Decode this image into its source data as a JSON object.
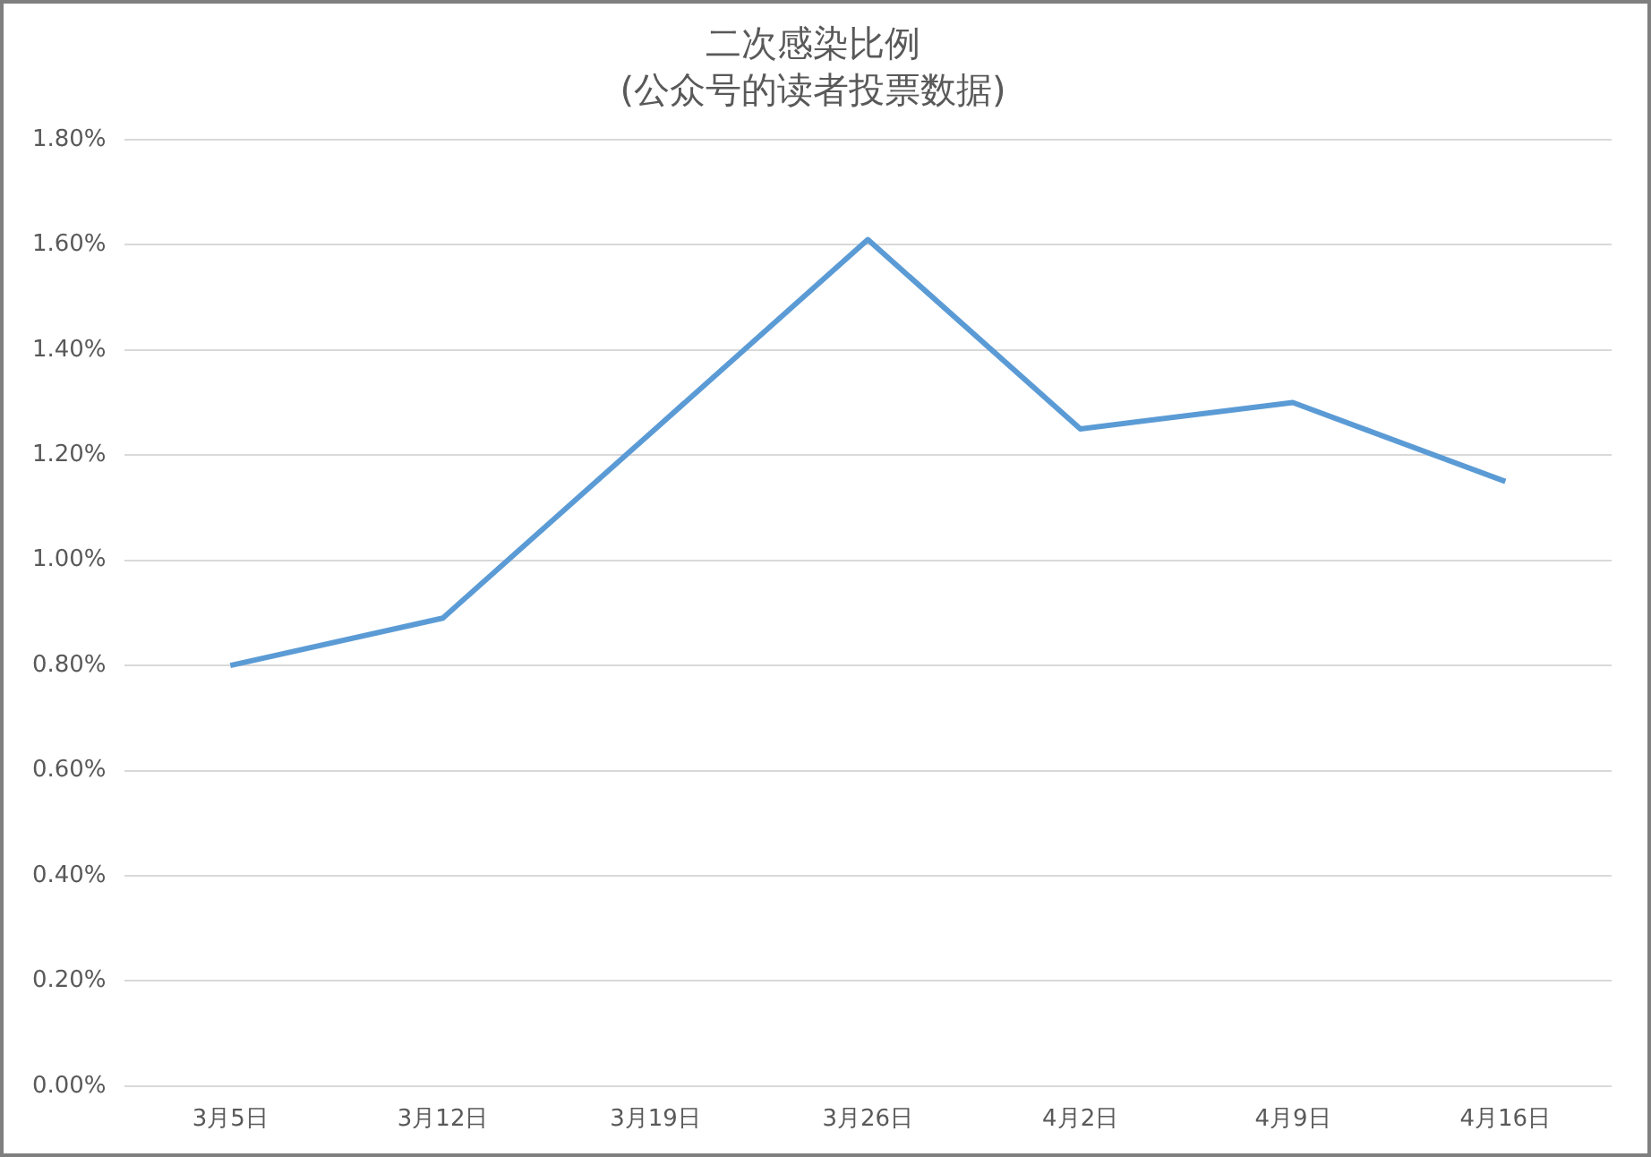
{
  "chart_data": {
    "type": "line",
    "title": "二次感染比例",
    "subtitle": "(公众号的读者投票数据)",
    "categories": [
      "3月5日",
      "3月12日",
      "3月19日",
      "3月26日",
      "4月2日",
      "4月9日",
      "4月16日"
    ],
    "series": [
      {
        "color": "#5b9bd5",
        "values": [
          0.8,
          0.89,
          1.25,
          1.61,
          1.25,
          1.3,
          1.15
        ]
      }
    ],
    "ylim": [
      0,
      1.8
    ],
    "yticks": [
      {
        "value": 0,
        "label": "0.00%"
      },
      {
        "value": 0.2,
        "label": "0.20%"
      },
      {
        "value": 0.4,
        "label": "0.40%"
      },
      {
        "value": 0.6,
        "label": "0.60%"
      },
      {
        "value": 0.8,
        "label": "0.80%"
      },
      {
        "value": 1.0,
        "label": "1.00%"
      },
      {
        "value": 1.2,
        "label": "1.20%"
      },
      {
        "value": 1.4,
        "label": "1.40%"
      },
      {
        "value": 1.6,
        "label": "1.60%"
      },
      {
        "value": 1.8,
        "label": "1.80%"
      }
    ],
    "grid": "y",
    "legend": false,
    "marker": "none",
    "line_style": "solid"
  }
}
